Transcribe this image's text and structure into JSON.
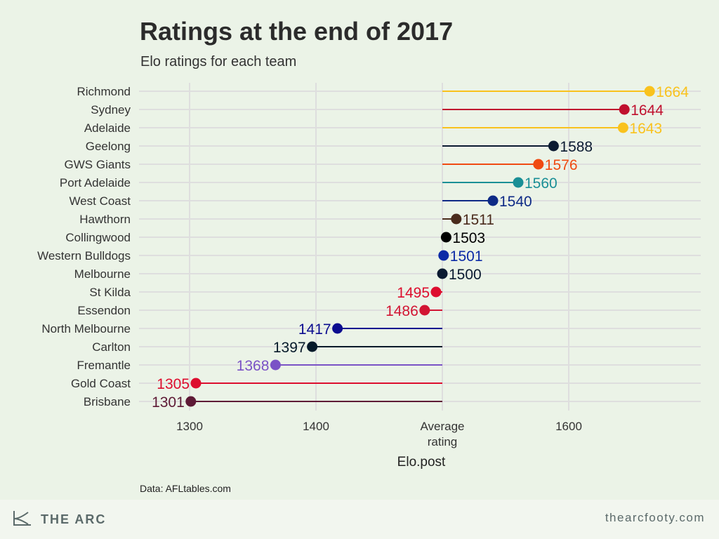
{
  "title": "Ratings at the end of 2017",
  "subtitle": "Elo ratings for each team",
  "caption": "Data: AFLtables.com",
  "footer": {
    "brand": "THE ARC",
    "brand_icon": "arc-logo-icon",
    "site": "thearcfooty.com"
  },
  "chart_data": {
    "type": "lollipop",
    "title": "Ratings at the end of 2017",
    "subtitle": "Elo ratings for each team",
    "xlabel": "Elo.post",
    "ylabel": "",
    "baseline": 1500,
    "xlim": [
      1260,
      1690
    ],
    "x_ticks": [
      {
        "value": 1300,
        "label": "1300"
      },
      {
        "value": 1400,
        "label": "1400"
      },
      {
        "value": 1500,
        "label": "Average\nrating"
      },
      {
        "value": 1600,
        "label": "1600"
      }
    ],
    "grid": true,
    "teams": [
      {
        "name": "Richmond",
        "value": 1664,
        "color": "#f9c21d"
      },
      {
        "name": "Sydney",
        "value": 1644,
        "color": "#c0102e"
      },
      {
        "name": "Adelaide",
        "value": 1643,
        "color": "#f9c21d"
      },
      {
        "name": "Geelong",
        "value": 1588,
        "color": "#0b1a31"
      },
      {
        "name": "GWS Giants",
        "value": 1576,
        "color": "#f04a12"
      },
      {
        "name": "Port Adelaide",
        "value": 1560,
        "color": "#1a8f96"
      },
      {
        "name": "West Coast",
        "value": 1540,
        "color": "#0e2a86"
      },
      {
        "name": "Hawthorn",
        "value": 1511,
        "color": "#4a2b1c"
      },
      {
        "name": "Collingwood",
        "value": 1503,
        "color": "#000000"
      },
      {
        "name": "Western Bulldogs",
        "value": 1501,
        "color": "#0b2aa6"
      },
      {
        "name": "Melbourne",
        "value": 1500,
        "color": "#0b1a31"
      },
      {
        "name": "St Kilda",
        "value": 1495,
        "color": "#dd0d2e"
      },
      {
        "name": "Essendon",
        "value": 1486,
        "color": "#d21533"
      },
      {
        "name": "North Melbourne",
        "value": 1417,
        "color": "#0b0c8f"
      },
      {
        "name": "Carlton",
        "value": 1397,
        "color": "#061a2a"
      },
      {
        "name": "Fremantle",
        "value": 1368,
        "color": "#7a52c6"
      },
      {
        "name": "Gold Coast",
        "value": 1305,
        "color": "#dd0d2e"
      },
      {
        "name": "Brisbane",
        "value": 1301,
        "color": "#5e1a36"
      }
    ]
  }
}
